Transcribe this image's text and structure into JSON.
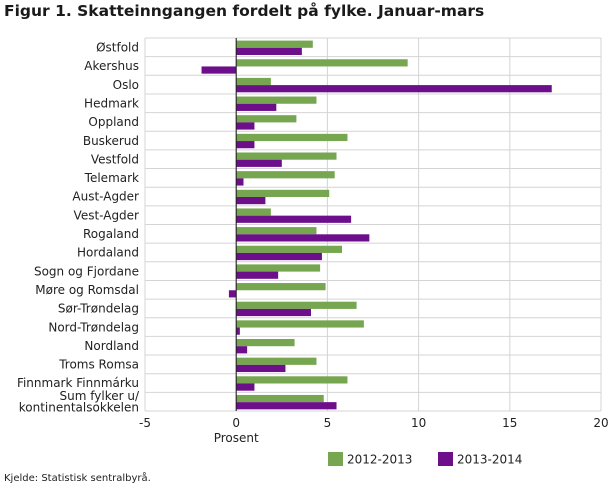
{
  "title": "Figur 1. Skatteinngangen fordelt på fylke. Januar-mars",
  "source": "Kjelde: Statistisk sentralbyrå.",
  "chart_data": {
    "type": "bar",
    "orientation": "horizontal",
    "title": "Figur 1. Skatteinngangen fordelt på fylke. Januar-mars",
    "xlabel": "Prosent",
    "ylabel": "",
    "xlim": [
      -5,
      20
    ],
    "xticks": [
      -5,
      0,
      5,
      10,
      15,
      20
    ],
    "grid": true,
    "legend_position": "bottom-right",
    "categories": [
      "Østfold",
      "Akershus",
      "Oslo",
      "Hedmark",
      "Oppland",
      "Buskerud",
      "Vestfold",
      "Telemark",
      "Aust-Agder",
      "Vest-Agder",
      "Rogaland",
      "Hordaland",
      "Sogn og Fjordane",
      "Møre og Romsdal",
      "Sør-Trøndelag",
      "Nord-Trøndelag",
      "Nordland",
      "Troms Romsa",
      "Finnmark Finnmárku",
      "Sum fylker u/ kontinentalsokkelen"
    ],
    "category_lines": [
      [
        "Østfold"
      ],
      [
        "Akershus"
      ],
      [
        "Oslo"
      ],
      [
        "Hedmark"
      ],
      [
        "Oppland"
      ],
      [
        "Buskerud"
      ],
      [
        "Vestfold"
      ],
      [
        "Telemark"
      ],
      [
        "Aust-Agder"
      ],
      [
        "Vest-Agder"
      ],
      [
        "Rogaland"
      ],
      [
        "Hordaland"
      ],
      [
        "Sogn og Fjordane"
      ],
      [
        "Møre og Romsdal"
      ],
      [
        "Sør-Trøndelag"
      ],
      [
        "Nord-Trøndelag"
      ],
      [
        "Nordland"
      ],
      [
        "Troms Romsa"
      ],
      [
        "Finnmark Finnmárku"
      ],
      [
        "Sum fylker u/",
        "kontinentalsokkelen"
      ]
    ],
    "series": [
      {
        "name": "2012-2013",
        "color": "#76a64f",
        "values": [
          4.2,
          9.4,
          1.9,
          4.4,
          3.3,
          6.1,
          5.5,
          5.4,
          5.1,
          1.9,
          4.4,
          5.8,
          4.6,
          4.9,
          6.6,
          7.0,
          3.2,
          4.4,
          6.1,
          4.8
        ]
      },
      {
        "name": "2013-2014",
        "color": "#6d0e8b",
        "values": [
          3.6,
          -1.9,
          17.3,
          2.2,
          1.0,
          1.0,
          2.5,
          0.4,
          1.6,
          6.3,
          7.3,
          4.7,
          2.3,
          -0.4,
          4.1,
          0.2,
          0.6,
          2.7,
          1.0,
          5.5
        ]
      }
    ]
  }
}
